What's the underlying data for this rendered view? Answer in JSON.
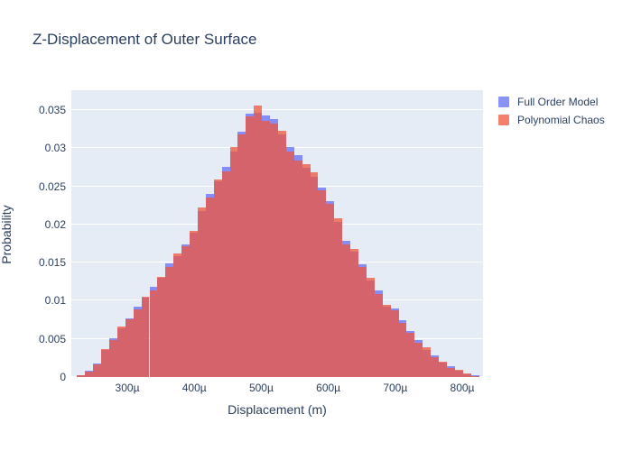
{
  "page": {
    "background": "#ffffff"
  },
  "chart_data": {
    "type": "bar",
    "subtype": "overlaid-histogram",
    "title": "Z-Displacement of Outer Surface",
    "xlabel": "Displacement (m)",
    "ylabel": "Probability",
    "plot_bg": "#e5ecf6",
    "grid_color": "#ffffff",
    "text_color": "#2a3f5f",
    "grid": true,
    "legend_position": "right-outside-top",
    "x_range_microns": [
      216.4,
      831.0
    ],
    "ylim": [
      0,
      0.0376
    ],
    "bin_start_microns": 225,
    "bin_width_microns": 12,
    "xticks": [
      {
        "value": 300,
        "label": "300µ"
      },
      {
        "value": 400,
        "label": "400µ"
      },
      {
        "value": 500,
        "label": "500µ"
      },
      {
        "value": 600,
        "label": "600µ"
      },
      {
        "value": 700,
        "label": "700µ"
      },
      {
        "value": 800,
        "label": "800µ"
      }
    ],
    "yticks": [
      {
        "value": 0,
        "label": "0"
      },
      {
        "value": 0.005,
        "label": "0.005"
      },
      {
        "value": 0.01,
        "label": "0.01"
      },
      {
        "value": 0.015,
        "label": "0.015"
      },
      {
        "value": 0.02,
        "label": "0.02"
      },
      {
        "value": 0.025,
        "label": "0.025"
      },
      {
        "value": 0.03,
        "label": "0.03"
      },
      {
        "value": 0.035,
        "label": "0.035"
      }
    ],
    "series": [
      {
        "name": "Full Order Model",
        "color": "#636efa",
        "opacity": 0.75,
        "values": [
          0.0002,
          0.0008,
          0.0018,
          0.0035,
          0.0051,
          0.0064,
          0.0077,
          0.0092,
          0.0104,
          0.0118,
          0.013,
          0.0149,
          0.0159,
          0.0174,
          0.0189,
          0.0217,
          0.024,
          0.0256,
          0.0275,
          0.0296,
          0.0322,
          0.0345,
          0.0347,
          0.0343,
          0.0338,
          0.0318,
          0.0302,
          0.0291,
          0.0274,
          0.0263,
          0.0248,
          0.023,
          0.0203,
          0.0179,
          0.0164,
          0.0148,
          0.0127,
          0.0113,
          0.0092,
          0.009,
          0.0074,
          0.006,
          0.0048,
          0.0036,
          0.0028,
          0.0019,
          0.0014,
          0.0008,
          0.0004,
          0.0002
        ]
      },
      {
        "name": "Polynomial Chaos",
        "color": "#EF553B",
        "opacity": 0.75,
        "values": [
          0.0002,
          0.0007,
          0.0017,
          0.0037,
          0.0048,
          0.0066,
          0.0076,
          0.0089,
          0.0105,
          0.0114,
          0.0131,
          0.0144,
          0.0162,
          0.0171,
          0.0192,
          0.0222,
          0.0235,
          0.0259,
          0.027,
          0.0302,
          0.0318,
          0.0342,
          0.0356,
          0.0336,
          0.0332,
          0.0323,
          0.0296,
          0.0284,
          0.0279,
          0.0268,
          0.0245,
          0.0227,
          0.0208,
          0.0174,
          0.0168,
          0.0144,
          0.013,
          0.0109,
          0.0095,
          0.0087,
          0.0071,
          0.0058,
          0.0045,
          0.0039,
          0.0026,
          0.002,
          0.0012,
          0.0009,
          0.0005,
          0.0001
        ]
      }
    ]
  }
}
